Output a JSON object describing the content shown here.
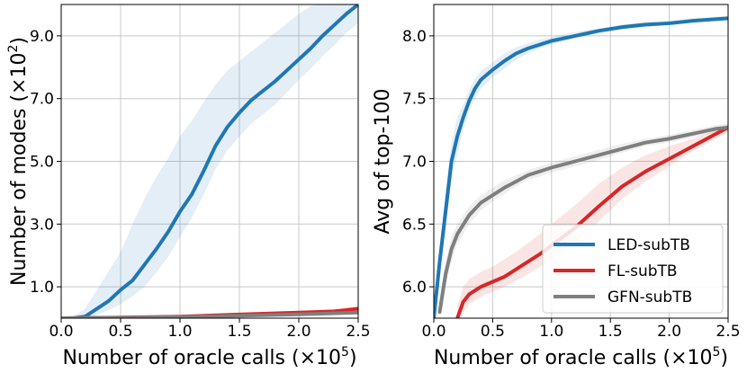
{
  "chart_data": [
    {
      "type": "line",
      "xlabel": "Number of oracle calls (×10",
      "xlabel_sup": "5",
      "xlabel_end": ")",
      "ylabel": "Number of modes (×10",
      "ylabel_sup": "2",
      "ylabel_end": ")",
      "xlim": [
        0.0,
        2.5
      ],
      "ylim": [
        0.0,
        10.0
      ],
      "xticks": [
        0.0,
        0.5,
        1.0,
        1.5,
        2.0,
        2.5
      ],
      "xtick_labels": [
        "0.0",
        "0.5",
        "1.0",
        "1.5",
        "2.0",
        "2.5"
      ],
      "yticks": [
        1.0,
        3.0,
        5.0,
        7.0,
        9.0
      ],
      "ytick_labels": [
        "1.0",
        "3.0",
        "5.0",
        "7.0",
        "9.0"
      ],
      "grid": true,
      "series": [
        {
          "color": "#1f77b4",
          "x": [
            0.0,
            0.1,
            0.2,
            0.3,
            0.4,
            0.5,
            0.6,
            0.7,
            0.8,
            0.9,
            1.0,
            1.1,
            1.2,
            1.3,
            1.4,
            1.5,
            1.6,
            1.7,
            1.8,
            1.9,
            2.0,
            2.1,
            2.2,
            2.3,
            2.4,
            2.5
          ],
          "y": [
            0.0,
            0.0,
            0.05,
            0.3,
            0.55,
            0.9,
            1.2,
            1.7,
            2.2,
            2.75,
            3.4,
            3.95,
            4.7,
            5.5,
            6.1,
            6.55,
            6.95,
            7.25,
            7.55,
            7.9,
            8.25,
            8.6,
            9.0,
            9.35,
            9.7,
            10.0
          ],
          "band_low": [
            0.0,
            0.0,
            0.0,
            0.1,
            0.25,
            0.45,
            0.7,
            1.0,
            1.45,
            1.95,
            2.6,
            3.2,
            3.95,
            4.75,
            5.35,
            5.8,
            6.2,
            6.5,
            6.8,
            7.2,
            7.6,
            7.95,
            8.35,
            8.7,
            9.1,
            9.4
          ],
          "band_high": [
            0.0,
            0.05,
            0.3,
            0.9,
            1.5,
            2.1,
            3.0,
            3.8,
            4.5,
            5.1,
            5.8,
            6.3,
            6.9,
            7.45,
            7.9,
            8.2,
            8.5,
            8.8,
            9.1,
            9.4,
            9.7,
            9.95,
            10.0,
            10.0,
            10.0,
            10.0
          ]
        },
        {
          "color": "#d62728",
          "x": [
            0.0,
            0.5,
            1.0,
            1.5,
            2.0,
            2.3,
            2.5
          ],
          "y": [
            0.0,
            0.02,
            0.05,
            0.12,
            0.18,
            0.22,
            0.3
          ],
          "band_low": [
            0.0,
            0.01,
            0.03,
            0.09,
            0.14,
            0.17,
            0.22
          ],
          "band_high": [
            0.0,
            0.04,
            0.08,
            0.16,
            0.22,
            0.28,
            0.38
          ]
        },
        {
          "color": "#7f7f7f",
          "x": [
            0.0,
            0.5,
            1.0,
            1.5,
            2.0,
            2.5
          ],
          "y": [
            0.0,
            0.01,
            0.04,
            0.08,
            0.12,
            0.18
          ],
          "band_low": [
            0.0,
            0.0,
            0.02,
            0.06,
            0.09,
            0.14
          ],
          "band_high": [
            0.0,
            0.02,
            0.06,
            0.1,
            0.15,
            0.22
          ]
        }
      ]
    },
    {
      "type": "line",
      "xlabel": "Number of oracle calls (×10",
      "xlabel_sup": "5",
      "xlabel_end": ")",
      "ylabel": "Avg of top-100",
      "xlim": [
        0.0,
        2.5
      ],
      "ylim": [
        5.75,
        8.25
      ],
      "xticks": [
        0.0,
        0.5,
        1.0,
        1.5,
        2.0,
        2.5
      ],
      "xtick_labels": [
        "0.0",
        "0.5",
        "1.0",
        "1.5",
        "2.0",
        "2.5"
      ],
      "yticks": [
        6.0,
        6.5,
        7.0,
        7.5,
        8.0
      ],
      "ytick_labels": [
        "6.0",
        "6.5",
        "7.0",
        "7.5",
        "8.0"
      ],
      "grid": true,
      "legend_position": "lower-right",
      "series": [
        {
          "name": "LED-subTB",
          "color": "#1f77b4",
          "x": [
            0.0,
            0.05,
            0.1,
            0.15,
            0.2,
            0.25,
            0.3,
            0.35,
            0.4,
            0.5,
            0.6,
            0.7,
            0.8,
            0.9,
            1.0,
            1.2,
            1.4,
            1.6,
            1.8,
            2.0,
            2.2,
            2.5
          ],
          "y": [
            5.75,
            6.2,
            6.6,
            7.0,
            7.2,
            7.35,
            7.48,
            7.58,
            7.65,
            7.73,
            7.8,
            7.86,
            7.9,
            7.93,
            7.96,
            8.0,
            8.04,
            8.07,
            8.09,
            8.1,
            8.12,
            8.14
          ],
          "band_low": [
            5.75,
            6.1,
            6.45,
            6.85,
            7.05,
            7.25,
            7.4,
            7.5,
            7.58,
            7.67,
            7.74,
            7.81,
            7.86,
            7.9,
            7.93,
            7.98,
            8.02,
            8.05,
            8.07,
            8.09,
            8.11,
            8.13
          ],
          "band_high": [
            5.75,
            6.3,
            6.75,
            7.15,
            7.35,
            7.45,
            7.57,
            7.66,
            7.72,
            7.79,
            7.86,
            7.91,
            7.94,
            7.97,
            7.99,
            8.03,
            8.06,
            8.09,
            8.11,
            8.12,
            8.14,
            8.16
          ]
        },
        {
          "name": "FL-subTB",
          "color": "#d62728",
          "x": [
            0.2,
            0.25,
            0.3,
            0.4,
            0.5,
            0.6,
            0.7,
            0.8,
            0.9,
            1.0,
            1.2,
            1.4,
            1.6,
            1.8,
            2.0,
            2.2,
            2.4,
            2.5
          ],
          "y": [
            5.75,
            5.88,
            5.94,
            6.0,
            6.04,
            6.08,
            6.14,
            6.2,
            6.26,
            6.33,
            6.47,
            6.64,
            6.8,
            6.92,
            7.02,
            7.12,
            7.22,
            7.27
          ],
          "band_low": [
            5.75,
            5.8,
            5.86,
            5.92,
            5.96,
            6.0,
            6.05,
            6.1,
            6.16,
            6.22,
            6.35,
            6.52,
            6.7,
            6.84,
            6.96,
            7.08,
            7.18,
            7.23
          ],
          "band_high": [
            5.85,
            6.0,
            6.06,
            6.12,
            6.16,
            6.22,
            6.28,
            6.35,
            6.42,
            6.5,
            6.65,
            6.82,
            6.95,
            7.05,
            7.12,
            7.18,
            7.25,
            7.3
          ]
        },
        {
          "name": "GFN-subTB",
          "color": "#7f7f7f",
          "x": [
            0.05,
            0.1,
            0.15,
            0.2,
            0.3,
            0.4,
            0.5,
            0.6,
            0.7,
            0.8,
            1.0,
            1.2,
            1.4,
            1.6,
            1.8,
            2.0,
            2.2,
            2.4,
            2.5
          ],
          "y": [
            5.8,
            6.1,
            6.3,
            6.42,
            6.57,
            6.67,
            6.73,
            6.79,
            6.84,
            6.89,
            6.95,
            7.0,
            7.05,
            7.1,
            7.15,
            7.18,
            7.22,
            7.26,
            7.27
          ],
          "band_low": [
            5.75,
            6.0,
            6.2,
            6.34,
            6.5,
            6.61,
            6.68,
            6.74,
            6.8,
            6.85,
            6.91,
            6.96,
            7.01,
            7.07,
            7.12,
            7.15,
            7.19,
            7.23,
            7.24
          ],
          "band_high": [
            5.9,
            6.2,
            6.4,
            6.5,
            6.64,
            6.73,
            6.79,
            6.85,
            6.89,
            6.93,
            6.99,
            7.04,
            7.09,
            7.14,
            7.18,
            7.21,
            7.25,
            7.29,
            7.3
          ]
        }
      ]
    }
  ]
}
